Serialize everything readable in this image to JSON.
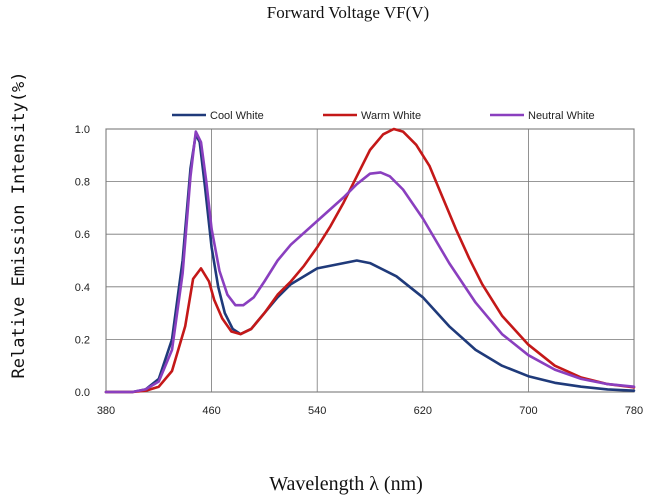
{
  "chart_data": {
    "type": "line",
    "top_caption": "Forward Voltage VF(V)",
    "xlabel": "Wavelength  λ  (nm)",
    "ylabel": "Relative Emission Intensity(%)",
    "xlim": [
      380,
      780
    ],
    "ylim": [
      0,
      1.0
    ],
    "x_ticks": [
      380,
      460,
      540,
      620,
      700,
      780
    ],
    "y_ticks": [
      0.0,
      0.2,
      0.4,
      0.6,
      0.8,
      1.0
    ],
    "y_tick_labels": [
      "0.0",
      "0.2",
      "0.4",
      "0.6",
      "0.8",
      "1.0"
    ],
    "grid": true,
    "legend_position": "top",
    "series": [
      {
        "name": "Cool White",
        "color": "#1f3a7a",
        "points": [
          [
            380,
            0
          ],
          [
            400,
            0
          ],
          [
            410,
            0.01
          ],
          [
            420,
            0.05
          ],
          [
            430,
            0.2
          ],
          [
            438,
            0.5
          ],
          [
            444,
            0.85
          ],
          [
            448,
            0.98
          ],
          [
            451,
            0.95
          ],
          [
            455,
            0.78
          ],
          [
            460,
            0.55
          ],
          [
            465,
            0.4
          ],
          [
            470,
            0.3
          ],
          [
            476,
            0.24
          ],
          [
            482,
            0.22
          ],
          [
            490,
            0.24
          ],
          [
            500,
            0.3
          ],
          [
            510,
            0.36
          ],
          [
            520,
            0.41
          ],
          [
            540,
            0.47
          ],
          [
            560,
            0.49
          ],
          [
            570,
            0.5
          ],
          [
            580,
            0.49
          ],
          [
            600,
            0.44
          ],
          [
            620,
            0.36
          ],
          [
            640,
            0.25
          ],
          [
            660,
            0.16
          ],
          [
            680,
            0.1
          ],
          [
            700,
            0.06
          ],
          [
            720,
            0.035
          ],
          [
            740,
            0.02
          ],
          [
            760,
            0.01
          ],
          [
            780,
            0.005
          ]
        ]
      },
      {
        "name": "Warm White",
        "color": "#c41818",
        "points": [
          [
            380,
            0
          ],
          [
            400,
            0
          ],
          [
            410,
            0.005
          ],
          [
            420,
            0.02
          ],
          [
            430,
            0.08
          ],
          [
            440,
            0.25
          ],
          [
            446,
            0.43
          ],
          [
            452,
            0.47
          ],
          [
            458,
            0.42
          ],
          [
            462,
            0.35
          ],
          [
            468,
            0.28
          ],
          [
            475,
            0.23
          ],
          [
            482,
            0.22
          ],
          [
            490,
            0.24
          ],
          [
            500,
            0.3
          ],
          [
            510,
            0.37
          ],
          [
            520,
            0.42
          ],
          [
            530,
            0.48
          ],
          [
            540,
            0.55
          ],
          [
            550,
            0.63
          ],
          [
            560,
            0.72
          ],
          [
            570,
            0.82
          ],
          [
            580,
            0.92
          ],
          [
            590,
            0.98
          ],
          [
            598,
            1.0
          ],
          [
            605,
            0.99
          ],
          [
            615,
            0.94
          ],
          [
            625,
            0.86
          ],
          [
            635,
            0.74
          ],
          [
            645,
            0.62
          ],
          [
            655,
            0.51
          ],
          [
            665,
            0.41
          ],
          [
            680,
            0.29
          ],
          [
            700,
            0.18
          ],
          [
            720,
            0.1
          ],
          [
            740,
            0.055
          ],
          [
            760,
            0.03
          ],
          [
            780,
            0.018
          ]
        ]
      },
      {
        "name": "Neutral White",
        "color": "#8a3fbf",
        "points": [
          [
            380,
            0
          ],
          [
            400,
            0
          ],
          [
            410,
            0.01
          ],
          [
            420,
            0.04
          ],
          [
            430,
            0.16
          ],
          [
            438,
            0.45
          ],
          [
            444,
            0.82
          ],
          [
            448,
            0.99
          ],
          [
            452,
            0.95
          ],
          [
            456,
            0.8
          ],
          [
            460,
            0.62
          ],
          [
            466,
            0.46
          ],
          [
            472,
            0.37
          ],
          [
            478,
            0.33
          ],
          [
            484,
            0.33
          ],
          [
            492,
            0.36
          ],
          [
            500,
            0.42
          ],
          [
            510,
            0.5
          ],
          [
            520,
            0.56
          ],
          [
            540,
            0.65
          ],
          [
            560,
            0.74
          ],
          [
            570,
            0.79
          ],
          [
            580,
            0.83
          ],
          [
            588,
            0.835
          ],
          [
            595,
            0.82
          ],
          [
            605,
            0.77
          ],
          [
            620,
            0.66
          ],
          [
            640,
            0.49
          ],
          [
            660,
            0.34
          ],
          [
            680,
            0.22
          ],
          [
            700,
            0.14
          ],
          [
            720,
            0.085
          ],
          [
            740,
            0.05
          ],
          [
            760,
            0.03
          ],
          [
            780,
            0.02
          ]
        ]
      }
    ]
  }
}
